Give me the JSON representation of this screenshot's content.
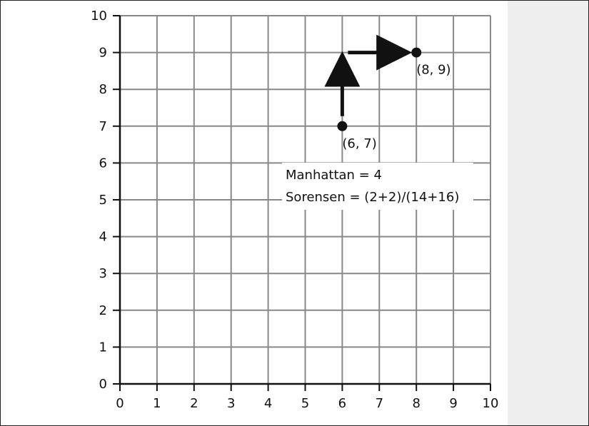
{
  "chart_data": {
    "type": "scatter",
    "xlim": [
      0,
      10
    ],
    "ylim": [
      0,
      10
    ],
    "grid": true,
    "x_ticks": [
      "0",
      "1",
      "2",
      "3",
      "4",
      "5",
      "6",
      "7",
      "8",
      "9",
      "10"
    ],
    "y_ticks": [
      "0",
      "1",
      "2",
      "3",
      "4",
      "5",
      "6",
      "7",
      "8",
      "9",
      "10"
    ],
    "points": [
      {
        "x": 6,
        "y": 7,
        "label": "(6, 7)"
      },
      {
        "x": 8,
        "y": 9,
        "label": "(8, 9)"
      }
    ],
    "path": [
      {
        "from": [
          6,
          7
        ],
        "to": [
          6,
          9
        ]
      },
      {
        "from": [
          6,
          9
        ],
        "to": [
          8,
          9
        ]
      }
    ],
    "annotations": [
      "Manhattan = 4",
      "Sorensen = (2+2)/(14+16)"
    ],
    "colors": {
      "grid": "#888888",
      "axis": "#111111",
      "marks": "#111111"
    }
  }
}
